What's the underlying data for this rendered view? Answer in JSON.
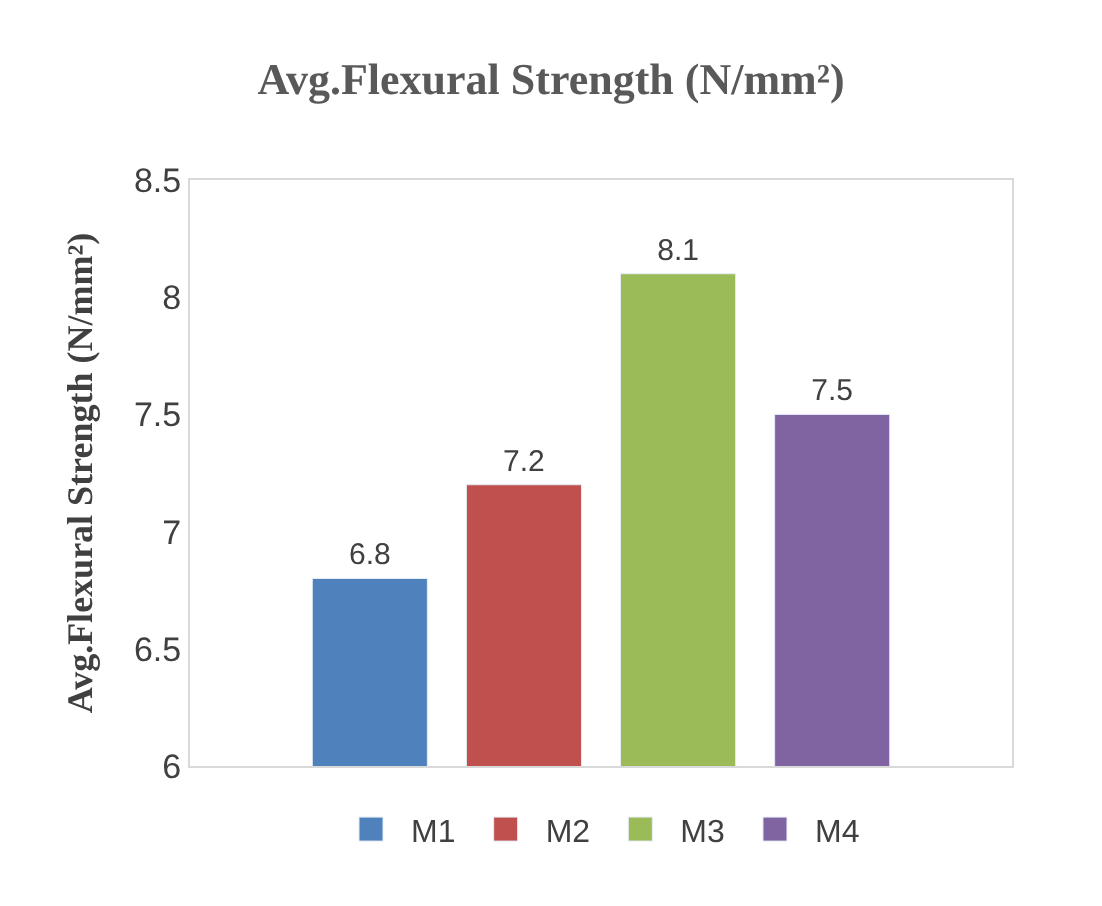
{
  "chart_data": {
    "type": "bar",
    "title": "Avg.Flexural Strength (N/mm²)",
    "ylabel": "Avg.Flexural Strength (N/mm²)",
    "categories": [
      null
    ],
    "series": [
      {
        "name": "M1",
        "color": "#4f81bd",
        "values": [
          6.8
        ]
      },
      {
        "name": "M2",
        "color": "#c0504d",
        "values": [
          7.2
        ]
      },
      {
        "name": "M3",
        "color": "#9bbb59",
        "values": [
          8.1
        ]
      },
      {
        "name": "M4",
        "color": "#8064a2",
        "values": [
          7.5
        ]
      }
    ],
    "ylim": [
      6,
      8.5
    ],
    "yticks": [
      6,
      6.5,
      7,
      7.5,
      8,
      8.5
    ],
    "data_labels": true,
    "legend": "bottom"
  }
}
